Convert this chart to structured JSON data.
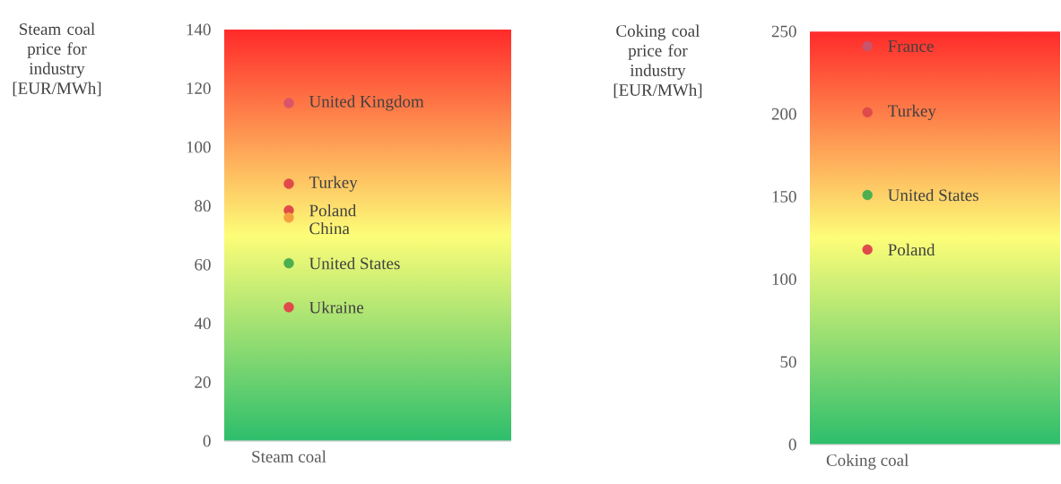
{
  "chart_data": [
    {
      "type": "scatter",
      "ylabel": "Steam coal price for industry [EUR/MWh]",
      "categories": [
        "Steam coal"
      ],
      "ylim": [
        0,
        140
      ],
      "yticks": [
        0,
        20,
        40,
        60,
        80,
        100,
        120,
        140
      ],
      "legend": false,
      "series": [
        {
          "name": "United Kingdom",
          "color": "#d9546a",
          "values": [
            115
          ]
        },
        {
          "name": "Turkey",
          "color": "#e04a4a",
          "values": [
            87.5
          ]
        },
        {
          "name": "Poland",
          "color": "#e04a4a",
          "values": [
            78.5
          ]
        },
        {
          "name": "China",
          "color": "#f5a040",
          "values": [
            76
          ]
        },
        {
          "name": "United States",
          "color": "#4caf50",
          "values": [
            60.5
          ]
        },
        {
          "name": "Ukraine",
          "color": "#e04a4a",
          "values": [
            45.5
          ]
        }
      ]
    },
    {
      "type": "scatter",
      "ylabel": "Coking coal price for industry [EUR/MWh]",
      "categories": [
        "Coking coal"
      ],
      "ylim": [
        0,
        250
      ],
      "yticks": [
        0,
        50,
        100,
        150,
        200,
        250
      ],
      "legend": false,
      "series": [
        {
          "name": "France",
          "color": "#c9546e",
          "values": [
            241
          ]
        },
        {
          "name": "Turkey",
          "color": "#e04a4a",
          "values": [
            201
          ]
        },
        {
          "name": "United States",
          "color": "#4caf50",
          "values": [
            151
          ]
        },
        {
          "name": "Poland",
          "color": "#e04a4a",
          "values": [
            118
          ]
        }
      ]
    }
  ]
}
